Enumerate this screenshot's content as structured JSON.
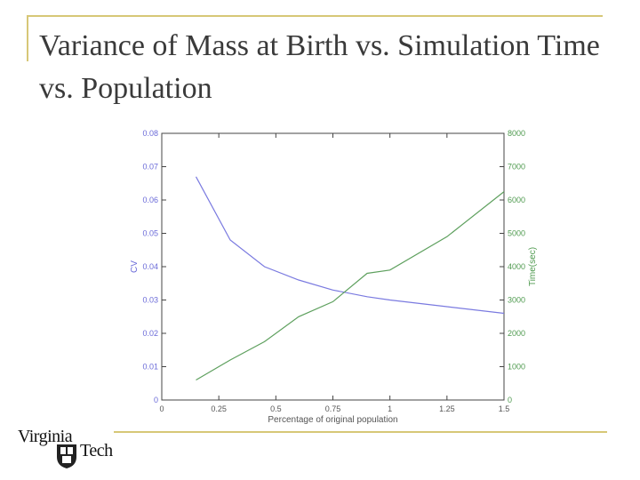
{
  "slide": {
    "title": "Variance of Mass at Birth vs. Simulation Time vs. Population"
  },
  "logo": {
    "line1": "Virginia",
    "line2": "Tech"
  },
  "colors": {
    "cv_line": "#7a7ae0",
    "time_line": "#5ea05e",
    "left_axis_text": "#6a6ad8",
    "right_axis_text": "#4f9a4f",
    "bottom_axis_text": "#555555",
    "rule": "#d7c777"
  },
  "chart_data": {
    "type": "line",
    "xlabel": "Percentage of original population",
    "ylabel": "CV",
    "y2label": "Time(sec)",
    "xlim": [
      0,
      1.5
    ],
    "ylim": [
      0,
      0.08
    ],
    "y2lim": [
      0,
      8000
    ],
    "xticks": [
      "0",
      "0.25",
      "0.5",
      "0.75",
      "1",
      "1.25",
      "1.5"
    ],
    "yticks": [
      "0",
      "0.01",
      "0.02",
      "0.03",
      "0.04",
      "0.05",
      "0.06",
      "0.07",
      "0.08"
    ],
    "y2ticks": [
      "0",
      "1000",
      "2000",
      "3000",
      "4000",
      "5000",
      "6000",
      "7000",
      "8000"
    ],
    "grid": false,
    "series": [
      {
        "axis": "left",
        "color": "#7a7ae0",
        "x": [
          0.15,
          0.3,
          0.45,
          0.6,
          0.75,
          0.9,
          1.0,
          1.25,
          1.5
        ],
        "values": [
          0.067,
          0.048,
          0.04,
          0.036,
          0.033,
          0.031,
          0.03,
          0.028,
          0.026
        ]
      },
      {
        "axis": "right",
        "color": "#5ea05e",
        "x": [
          0.15,
          0.3,
          0.45,
          0.6,
          0.75,
          0.9,
          1.0,
          1.25,
          1.5
        ],
        "values": [
          600,
          1200,
          1750,
          2500,
          2950,
          3800,
          3900,
          4900,
          6250
        ]
      }
    ]
  }
}
